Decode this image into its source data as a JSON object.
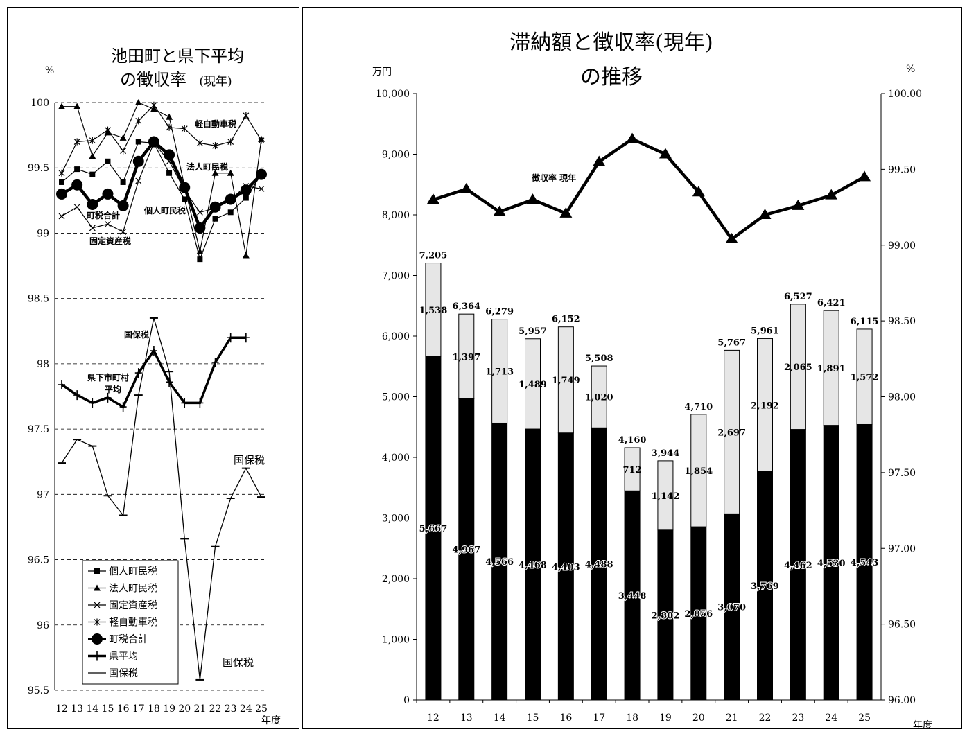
{
  "chart_data": [
    {
      "type": "line",
      "title_line1": "池田町と県下平均",
      "title_line2": "の徴収率",
      "title_suffix": "(現年)",
      "ylabel": "%",
      "xlabel": "年度",
      "ylim": [
        95.5,
        100
      ],
      "yticks": [
        "100",
        "99.5",
        "99",
        "98.5",
        "98",
        "97.5",
        "97",
        "96.5",
        "96",
        "95.5"
      ],
      "x": [
        "12",
        "13",
        "14",
        "15",
        "16",
        "17",
        "18",
        "19",
        "20",
        "21",
        "22",
        "23",
        "24",
        "25"
      ],
      "series": [
        {
          "name": "個人町民税",
          "marker": "square",
          "values": [
            99.39,
            99.49,
            99.45,
            99.55,
            99.39,
            99.7,
            99.69,
            99.46,
            99.26,
            98.8,
            99.11,
            99.16,
            99.27,
            99.45
          ]
        },
        {
          "name": "法人町民税",
          "marker": "triangle",
          "values": [
            99.97,
            99.97,
            99.59,
            99.77,
            99.73,
            100.0,
            99.95,
            99.89,
            99.36,
            98.86,
            99.46,
            99.46,
            98.83,
            99.72
          ]
        },
        {
          "name": "固定資産税",
          "marker": "x",
          "values": [
            99.13,
            99.2,
            99.04,
            99.07,
            99.01,
            99.4,
            99.69,
            99.55,
            99.33,
            99.16,
            99.19,
            99.26,
            99.36,
            99.34
          ]
        },
        {
          "name": "軽自動車税",
          "marker": "asterisk",
          "values": [
            99.46,
            99.7,
            99.71,
            99.79,
            99.63,
            99.86,
            99.98,
            99.81,
            99.8,
            99.69,
            99.67,
            99.7,
            99.9,
            99.71
          ]
        },
        {
          "name": "町税合計",
          "marker": "circle",
          "values": [
            99.3,
            99.37,
            99.22,
            99.3,
            99.21,
            99.55,
            99.7,
            99.6,
            99.35,
            99.04,
            99.2,
            99.26,
            99.33,
            99.45
          ]
        },
        {
          "name": "県平均",
          "marker": "plus",
          "values": [
            97.84,
            97.76,
            97.7,
            97.74,
            97.67,
            97.93,
            98.1,
            97.86,
            97.7,
            97.7,
            98.01,
            98.2,
            98.2,
            null
          ]
        },
        {
          "name": "国保税",
          "marker": "dash",
          "values": [
            97.24,
            97.42,
            97.37,
            96.99,
            96.84,
            97.76,
            98.35,
            97.94,
            96.66,
            95.58,
            96.6,
            96.97,
            97.2,
            96.98
          ]
        }
      ],
      "annotations": [
        "軽自動車税",
        "法人町民税",
        "個人町民税",
        "町税合計",
        "固定資産税",
        "国保税",
        "県下市町村",
        "平均",
        "国保税",
        "国保税"
      ]
    },
    {
      "type": "bar",
      "title_line1": "滞納額と徴収率(現年)",
      "title_line2": "の推移",
      "ylabel_left": "万円",
      "ylabel_right": "%",
      "xlabel": "年度",
      "ylim_left": [
        0,
        10000
      ],
      "ylim_right": [
        96,
        100
      ],
      "yticks_left": [
        "10,000",
        "9,000",
        "8,000",
        "7,000",
        "6,000",
        "5,000",
        "4,000",
        "3,000",
        "2,000",
        "1,000",
        "0"
      ],
      "yticks_right": [
        "100.00",
        "99.50",
        "99.00",
        "98.50",
        "98.00",
        "97.50",
        "97.00",
        "96.50",
        "96.00"
      ],
      "categories": [
        "12",
        "13",
        "14",
        "15",
        "16",
        "17",
        "18",
        "19",
        "20",
        "21",
        "22",
        "23",
        "24",
        "25"
      ],
      "bar_lower": [
        5667,
        4967,
        4566,
        4468,
        4403,
        4488,
        3448,
        2802,
        2856,
        3070,
        3769,
        4462,
        4530,
        4543
      ],
      "bar_upper": [
        1538,
        1397,
        1713,
        1489,
        1749,
        1020,
        712,
        1142,
        1854,
        2697,
        2192,
        2065,
        1891,
        1572
      ],
      "bar_lower_labels": [
        "5,667",
        "4,967",
        "4,566",
        "4,468",
        "4,403",
        "4,488",
        "3,448",
        "2,802",
        "2,856",
        "3,070",
        "3,769",
        "4,462",
        "4,530",
        "4,543"
      ],
      "bar_upper_labels": [
        "1,538",
        "1,397",
        "1,713",
        "1,489",
        "1,749",
        "1,020",
        "712",
        "1,142",
        "1,854",
        "2,697",
        "2,192",
        "2,065",
        "1,891",
        "1,572"
      ],
      "totals": [
        "7,205",
        "6,364",
        "6,279",
        "5,957",
        "6,152",
        "5,508",
        "4,160",
        "3,944",
        "4,710",
        "5,767",
        "5,961",
        "6,527",
        "6,421",
        "6,115"
      ],
      "line": {
        "name": "徴収率 現年",
        "values": [
          99.3,
          99.37,
          99.22,
          99.3,
          99.21,
          99.55,
          99.7,
          99.6,
          99.35,
          99.04,
          99.2,
          99.26,
          99.33,
          99.45
        ]
      }
    }
  ]
}
